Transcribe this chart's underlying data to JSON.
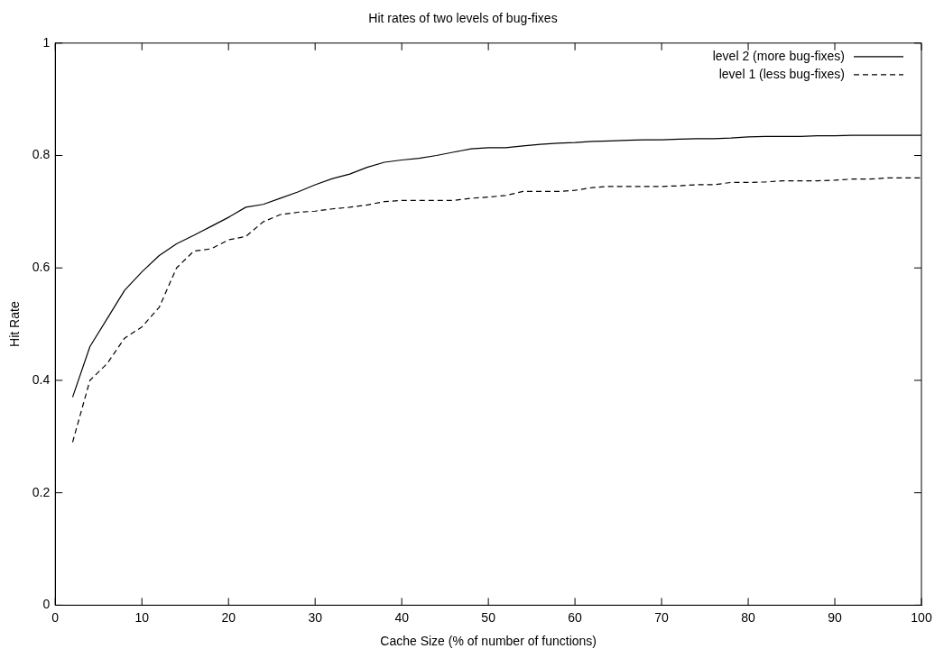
{
  "chart_data": {
    "type": "line",
    "title": "Hit rates of two levels of bug-fixes",
    "xlabel": "Cache Size (% of number of functions)",
    "ylabel": "Hit Rate",
    "x": [
      2,
      4,
      6,
      8,
      10,
      12,
      14,
      16,
      18,
      20,
      22,
      24,
      26,
      28,
      30,
      32,
      34,
      36,
      38,
      40,
      42,
      44,
      46,
      48,
      50,
      52,
      54,
      56,
      58,
      60,
      62,
      64,
      66,
      68,
      70,
      72,
      74,
      76,
      78,
      80,
      82,
      84,
      86,
      88,
      90,
      92,
      94,
      96,
      98,
      100
    ],
    "series": [
      {
        "name": "level 2 (more bug-fixes)",
        "color": "#000000",
        "line_style": "solid",
        "values": [
          0.37,
          0.46,
          0.51,
          0.56,
          0.593,
          0.622,
          0.643,
          0.658,
          0.674,
          0.69,
          0.708,
          0.713,
          0.724,
          0.735,
          0.748,
          0.759,
          0.767,
          0.779,
          0.788,
          0.792,
          0.795,
          0.8,
          0.806,
          0.812,
          0.814,
          0.814,
          0.817,
          0.82,
          0.822,
          0.823,
          0.825,
          0.826,
          0.827,
          0.828,
          0.828,
          0.829,
          0.83,
          0.83,
          0.831,
          0.833,
          0.834,
          0.834,
          0.834,
          0.835,
          0.835,
          0.836,
          0.836,
          0.836,
          0.836,
          0.836
        ]
      },
      {
        "name": "level 1 (less bug-fixes)",
        "color": "#000000",
        "line_style": "dashed",
        "values": [
          0.29,
          0.4,
          0.43,
          0.475,
          0.495,
          0.53,
          0.6,
          0.63,
          0.634,
          0.65,
          0.656,
          0.682,
          0.695,
          0.699,
          0.701,
          0.705,
          0.708,
          0.712,
          0.718,
          0.72,
          0.72,
          0.72,
          0.72,
          0.724,
          0.726,
          0.729,
          0.736,
          0.736,
          0.736,
          0.738,
          0.743,
          0.745,
          0.745,
          0.745,
          0.745,
          0.746,
          0.748,
          0.748,
          0.752,
          0.752,
          0.753,
          0.755,
          0.755,
          0.755,
          0.756,
          0.758,
          0.758,
          0.76,
          0.76,
          0.76
        ]
      }
    ],
    "xlim": [
      0,
      100
    ],
    "xticks": [
      0,
      10,
      20,
      30,
      40,
      50,
      60,
      70,
      80,
      90,
      100
    ],
    "ylim": [
      0,
      1
    ],
    "yticks": [
      0,
      0.2,
      0.4,
      0.6,
      0.8,
      1
    ],
    "grid": false,
    "legend": "top right",
    "marker": "none"
  }
}
